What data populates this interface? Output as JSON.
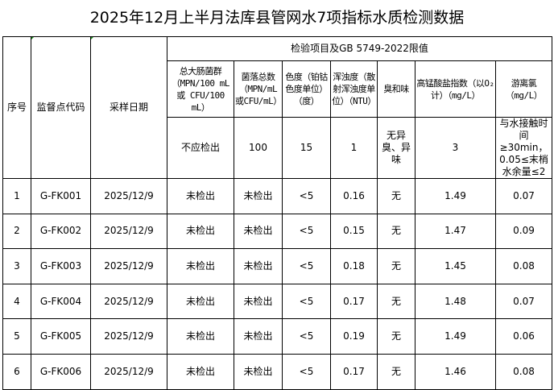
{
  "title": "2025年12月上半月法库县管网水7项指标水质检测数据",
  "headers": {
    "no": "序号",
    "code": "监督点代码",
    "date": "采样日期",
    "group": "检验项目及GB 5749-2022限值"
  },
  "params": [
    {
      "name": "总大肠菌群（MPN/100 mL或 CFU/100 mL）",
      "limit": "不应检出"
    },
    {
      "name": "菌落总数（MPN/mL或CFU/mL）",
      "limit": "100"
    },
    {
      "name": "色度（铂钴色度单位）（度）",
      "limit": "15"
    },
    {
      "name": "浑浊度（散射浑浊度单位）（NTU）",
      "limit": "1"
    },
    {
      "name": "臭和味",
      "limit": "无异臭、异味"
    },
    {
      "name": "高锰酸盐指数（以O₂计）（mg/L）",
      "limit": "3"
    },
    {
      "name": "游离氯（mg/L）",
      "limit": "与水接触时间≥30min，0.05≤末梢水余量≤2"
    }
  ],
  "rows": [
    {
      "no": "1",
      "code": "G-FK001",
      "date": "2025/12/9",
      "v": [
        "未检出",
        "未检出",
        "<5",
        "0.16",
        "无",
        "1.49",
        "0.07"
      ]
    },
    {
      "no": "2",
      "code": "G-FK002",
      "date": "2025/12/9",
      "v": [
        "未检出",
        "未检出",
        "<5",
        "0.15",
        "无",
        "1.47",
        "0.09"
      ]
    },
    {
      "no": "3",
      "code": "G-FK003",
      "date": "2025/12/9",
      "v": [
        "未检出",
        "未检出",
        "<5",
        "0.18",
        "无",
        "1.45",
        "0.08"
      ]
    },
    {
      "no": "4",
      "code": "G-FK004",
      "date": "2025/12/9",
      "v": [
        "未检出",
        "未检出",
        "<5",
        "0.17",
        "无",
        "1.48",
        "0.07"
      ]
    },
    {
      "no": "5",
      "code": "G-FK005",
      "date": "2025/12/9",
      "v": [
        "未检出",
        "未检出",
        "<5",
        "0.19",
        "无",
        "1.49",
        "0.06"
      ]
    },
    {
      "no": "6",
      "code": "G-FK006",
      "date": "2025/12/9",
      "v": [
        "未检出",
        "未检出",
        "<5",
        "0.17",
        "无",
        "1.46",
        "0.08"
      ]
    }
  ]
}
